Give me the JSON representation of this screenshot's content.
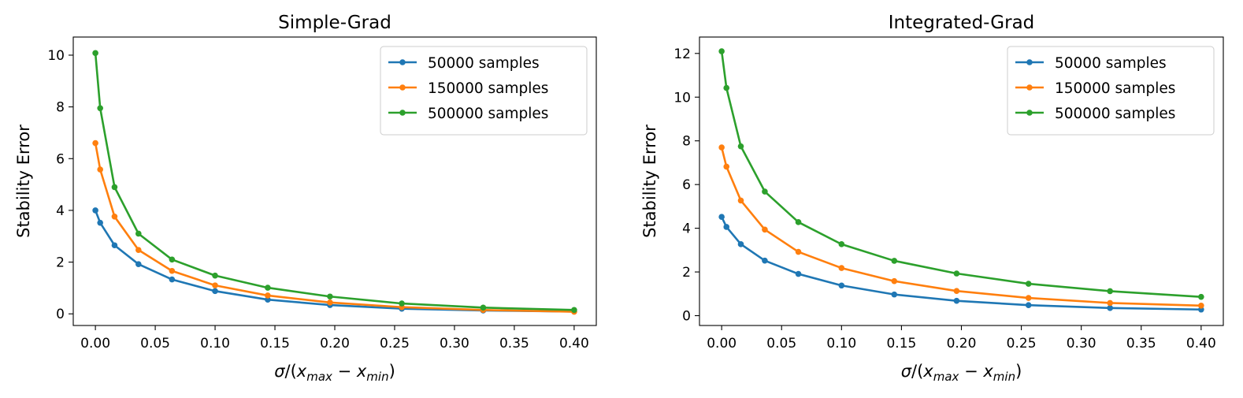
{
  "chart_data": [
    {
      "type": "line",
      "title": "Simple-Grad",
      "xlabel": "σ/(x_max − x_min)",
      "ylabel": "Stability Error",
      "xlim": [
        -0.0185,
        0.4185
      ],
      "ylim": [
        -0.45,
        10.7
      ],
      "xticks": [
        0.0,
        0.05,
        0.1,
        0.15,
        0.2,
        0.25,
        0.3,
        0.35,
        0.4
      ],
      "xtick_labels": [
        "0.00",
        "0.05",
        "0.10",
        "0.15",
        "0.20",
        "0.25",
        "0.30",
        "0.35",
        "0.40"
      ],
      "yticks": [
        0,
        2,
        4,
        6,
        8,
        10
      ],
      "ytick_labels": [
        "0",
        "2",
        "4",
        "6",
        "8",
        "10"
      ],
      "legend_position": "top-right",
      "x": [
        0.0,
        0.004,
        0.016,
        0.036,
        0.064,
        0.1,
        0.144,
        0.196,
        0.256,
        0.324,
        0.4
      ],
      "series": [
        {
          "name": "50000 samples",
          "color": "#1f77b4",
          "values": [
            4.0,
            3.52,
            2.65,
            1.92,
            1.33,
            0.88,
            0.55,
            0.34,
            0.2,
            0.13,
            0.09
          ]
        },
        {
          "name": "150000 samples",
          "color": "#ff7f0e",
          "values": [
            6.6,
            5.58,
            3.76,
            2.47,
            1.66,
            1.1,
            0.71,
            0.44,
            0.26,
            0.15,
            0.08
          ]
        },
        {
          "name": "500000 samples",
          "color": "#2ca02c",
          "values": [
            10.08,
            7.95,
            4.9,
            3.1,
            2.1,
            1.48,
            1.01,
            0.67,
            0.4,
            0.24,
            0.15
          ]
        }
      ]
    },
    {
      "type": "line",
      "title": "Integrated-Grad",
      "xlabel": "σ/(x_max − x_min)",
      "ylabel": "Stability Error",
      "xlim": [
        -0.0185,
        0.4185
      ],
      "ylim": [
        -0.45,
        12.75
      ],
      "xticks": [
        0.0,
        0.05,
        0.1,
        0.15,
        0.2,
        0.25,
        0.3,
        0.35,
        0.4
      ],
      "xtick_labels": [
        "0.00",
        "0.05",
        "0.10",
        "0.15",
        "0.20",
        "0.25",
        "0.30",
        "0.35",
        "0.40"
      ],
      "yticks": [
        0,
        2,
        4,
        6,
        8,
        10,
        12
      ],
      "ytick_labels": [
        "0",
        "2",
        "4",
        "6",
        "8",
        "10",
        "12"
      ],
      "legend_position": "top-right",
      "x": [
        0.0,
        0.004,
        0.016,
        0.036,
        0.064,
        0.1,
        0.144,
        0.196,
        0.256,
        0.324,
        0.4
      ],
      "series": [
        {
          "name": "50000 samples",
          "color": "#1f77b4",
          "values": [
            4.52,
            4.06,
            3.27,
            2.52,
            1.91,
            1.38,
            0.97,
            0.68,
            0.48,
            0.35,
            0.28
          ]
        },
        {
          "name": "150000 samples",
          "color": "#ff7f0e",
          "values": [
            7.7,
            6.82,
            5.27,
            3.94,
            2.92,
            2.18,
            1.58,
            1.13,
            0.81,
            0.58,
            0.46
          ]
        },
        {
          "name": "500000 samples",
          "color": "#2ca02c",
          "values": [
            12.1,
            10.42,
            7.75,
            5.68,
            4.28,
            3.27,
            2.51,
            1.93,
            1.46,
            1.12,
            0.86
          ]
        }
      ]
    }
  ]
}
